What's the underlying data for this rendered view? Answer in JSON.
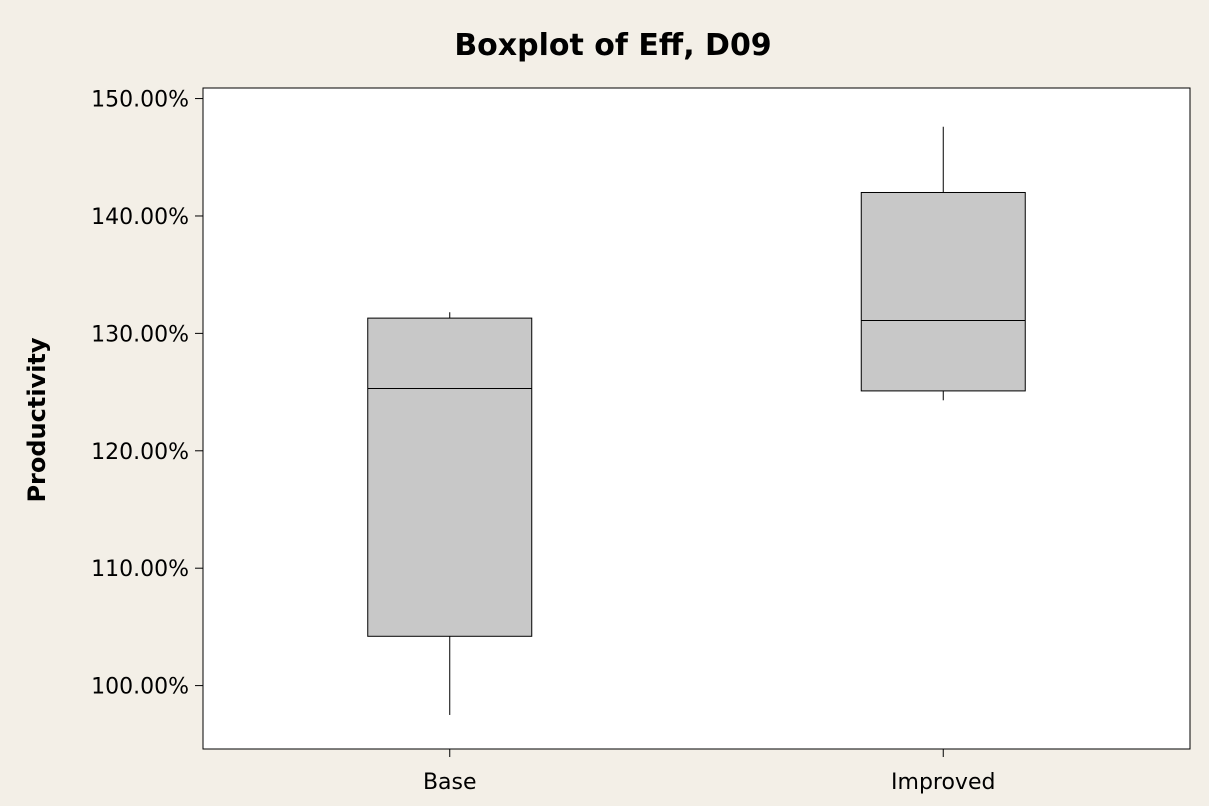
{
  "chart_data": {
    "type": "boxplot",
    "title": "Boxplot of Eff, D09",
    "xlabel": "",
    "ylabel": "Productivity",
    "ylim": [
      94.6,
      150.9
    ],
    "yticks": [
      100,
      110,
      120,
      130,
      140,
      150
    ],
    "ytick_labels": [
      "100.00%",
      "110.00%",
      "120.00%",
      "130.00%",
      "140.00%",
      "150.00%"
    ],
    "categories": [
      "Base",
      "Improved"
    ],
    "boxes": [
      {
        "category": "Base",
        "whisker_low": 97.5,
        "q1": 104.2,
        "median": 125.3,
        "q3": 131.3,
        "whisker_high": 131.8
      },
      {
        "category": "Improved",
        "whisker_low": 124.3,
        "q1": 125.1,
        "median": 131.1,
        "q3": 142.0,
        "whisker_high": 147.6
      }
    ],
    "grid": false,
    "box_color": "#c8c8c8",
    "plot_background": "#ffffff",
    "page_background": "#f3efe7"
  }
}
